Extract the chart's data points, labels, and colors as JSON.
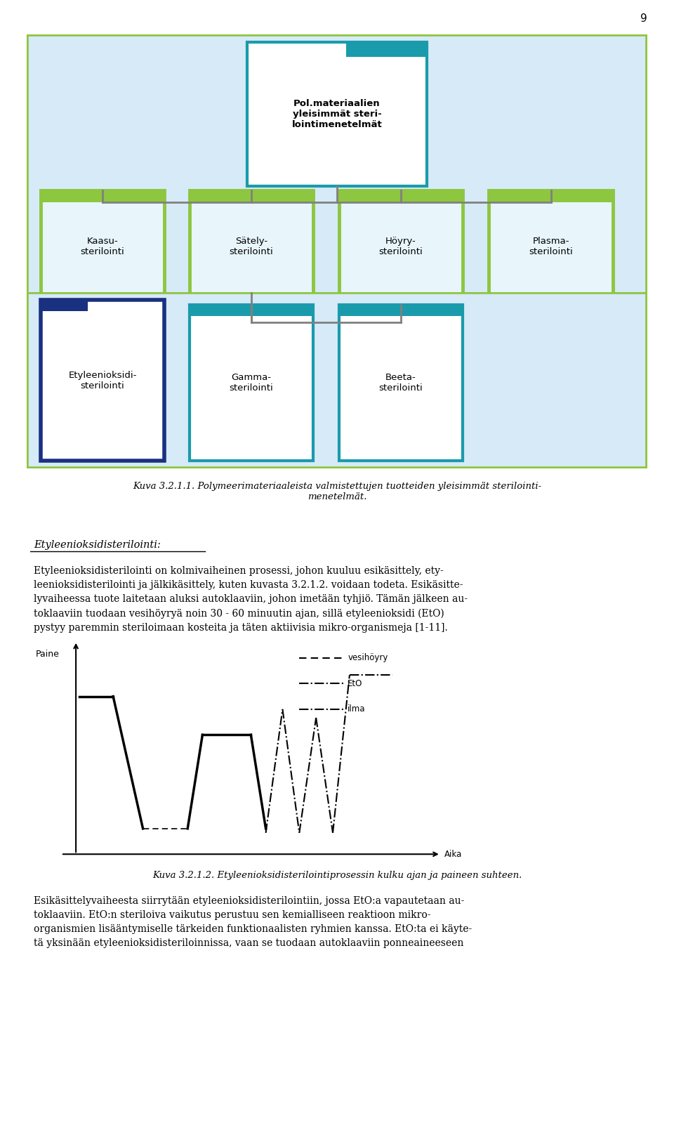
{
  "page_number": "9",
  "bg_diagram": "#d6eaf8",
  "border_green": "#8dc63f",
  "border_teal": "#1a9bab",
  "border_blue": "#1a3080",
  "root_text": "Pol.materiaalien\nyleisimmät steri-\nlointimenetelmät",
  "level1_labels": [
    "Kaasu-\nsterilointi",
    "Sätely-\nsterilointi",
    "Höyry-\nsterilointi",
    "Plasma-\nsterilointi"
  ],
  "level2_labels": [
    "Etyleenioksidi-\nsterilointi",
    "Gamma-\nsterilointi",
    "Beeta-\nsterilointi"
  ],
  "caption1_line1": "Kuva 3.2.1.1. Polymeerimateriaaleista valmistettujen tuotteiden yleisimmät sterilointi-",
  "caption1_line2": "menetelmät.",
  "section_heading": "Etyleenioksidisterilointi:",
  "para1_lines": [
    "Etyleenioksidisterilointi on kolmivaiheinen prosessi, johon kuuluu esikäsittely, ety-",
    "leenioksidisterilointi ja jälkikäsittely, kuten kuvasta 3.2.1.2. voidaan todeta. Esikäsitte-",
    "lyvaiheessa tuote laitetaan aluksi autoklaaviin, johon imetään tyhjiö. Tämän jälkeen au-",
    "toklaaviin tuodaan vesihöyryä noin 30 - 60 minuutin ajan, sillä etyleenioksidi (EtO)",
    "pystyy paremmin steriloimaan kosteita ja täten aktiivisia mikro-organismeja [1-11]."
  ],
  "graph_ylabel": "Paine",
  "graph_xlabel": "Aika",
  "legend_items": [
    "vesihöyry",
    "EtO",
    "ilma"
  ],
  "caption2": "Kuva 3.2.1.2. Etyleenioksidisterilointiprosessin kulku ajan ja paineen suhteen.",
  "para2_lines": [
    "Esikäsittelyvaiheesta siirrytään etyleenioksidisterilointiin, jossa EtO:a vapautetaan au-",
    "toklaaviin. EtO:n steriloiva vaikutus perustuu sen kemialliseen reaktioon mikro-",
    "organismien lisääntymiselle tärkeiden funktionaalisten ryhmien kanssa. EtO:ta ei käyte-",
    "tä yksinään etyleenioksidisteriloinnissa, vaan se tuodaan autoklaaviin ponneaineeseen"
  ]
}
